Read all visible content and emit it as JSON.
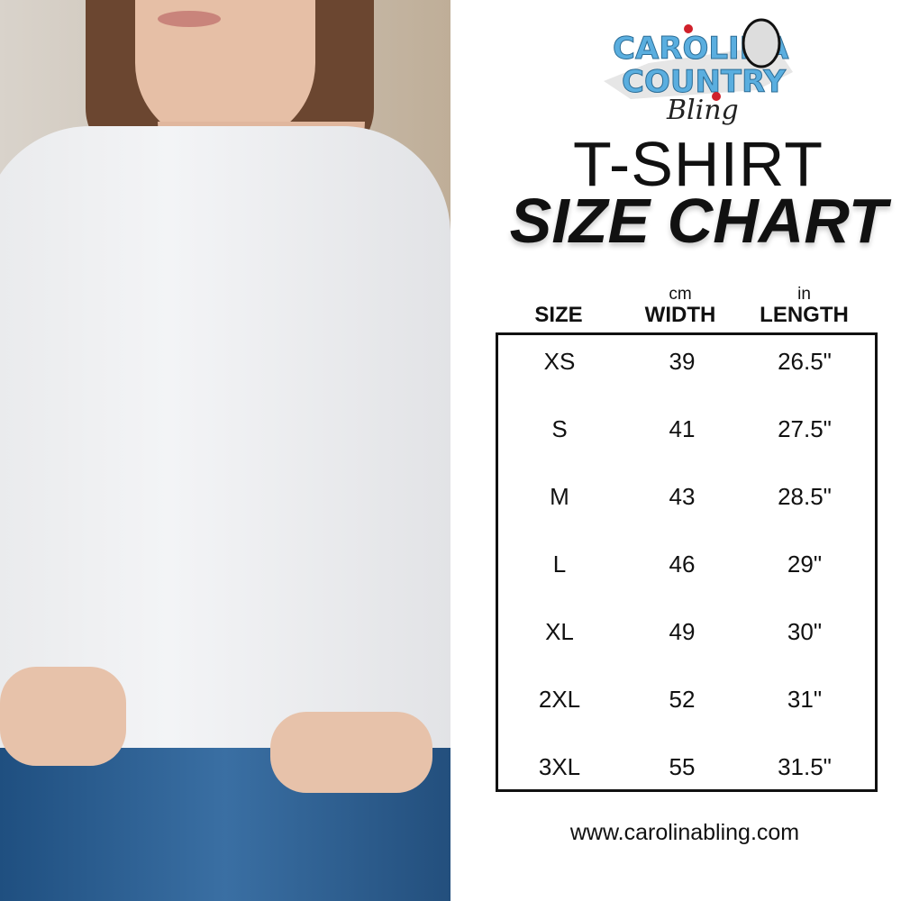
{
  "brand": {
    "logo_text": "Carolina Country Bling",
    "colors": {
      "logo_blue": "#5aaedf",
      "accent_red": "#d0202a"
    }
  },
  "title": {
    "line1": "T-SHIRT",
    "line2": "SIZE CHART"
  },
  "table": {
    "headers": [
      {
        "label": "SIZE",
        "unit": ""
      },
      {
        "label": "WIDTH",
        "unit": "cm"
      },
      {
        "label": "LENGTH",
        "unit": "in"
      }
    ],
    "rows": [
      {
        "size": "XS",
        "width": "39",
        "length": "26.5\""
      },
      {
        "size": "S",
        "width": "41",
        "length": "27.5\""
      },
      {
        "size": "M",
        "width": "43",
        "length": "28.5\""
      },
      {
        "size": "L",
        "width": "46",
        "length": "29\""
      },
      {
        "size": "XL",
        "width": "49",
        "length": "30\""
      },
      {
        "size": "2XL",
        "width": "52",
        "length": "31\""
      },
      {
        "size": "3XL",
        "width": "55",
        "length": "31.5\""
      }
    ]
  },
  "website": "www.carolinabling.com"
}
